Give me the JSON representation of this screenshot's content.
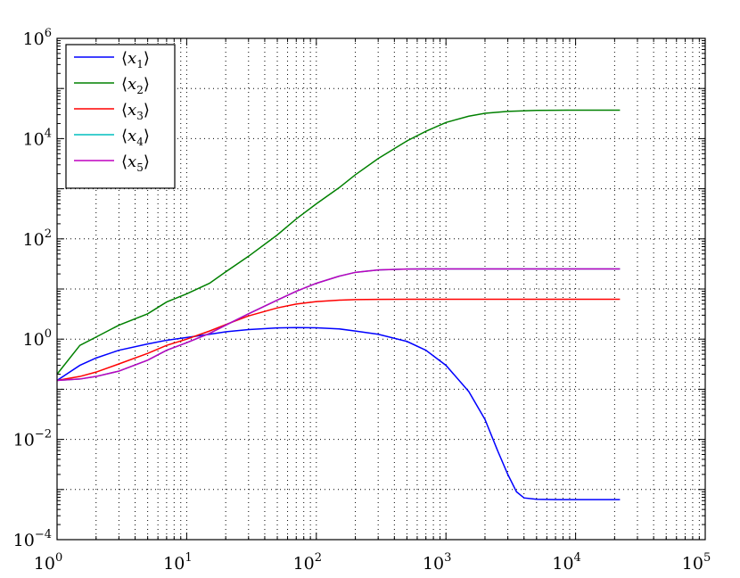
{
  "chart_data": {
    "type": "line",
    "xscale": "log",
    "yscale": "log",
    "xlim": [
      1,
      100000
    ],
    "ylim": [
      0.0001,
      1000000
    ],
    "grid": true,
    "legend": "top-left",
    "x_ticks": [
      {
        "base": "10",
        "exp": "0",
        "value": 1
      },
      {
        "base": "10",
        "exp": "1",
        "value": 10
      },
      {
        "base": "10",
        "exp": "2",
        "value": 100
      },
      {
        "base": "10",
        "exp": "3",
        "value": 1000
      },
      {
        "base": "10",
        "exp": "4",
        "value": 10000
      },
      {
        "base": "10",
        "exp": "5",
        "value": 100000
      }
    ],
    "y_ticks": [
      {
        "base": "10",
        "exp": "−4",
        "value": 0.0001
      },
      {
        "base": "10",
        "exp": "−2",
        "value": 0.01
      },
      {
        "base": "10",
        "exp": "0",
        "value": 1
      },
      {
        "base": "10",
        "exp": "2",
        "value": 100
      },
      {
        "base": "10",
        "exp": "4",
        "value": 10000
      },
      {
        "base": "10",
        "exp": "6",
        "value": 1000000
      }
    ],
    "series": [
      {
        "name": "⟨x1⟩",
        "label_main": "x",
        "label_sub": "1",
        "color": "#0000ff",
        "x": [
          1,
          1.5,
          2,
          3,
          5,
          7,
          10,
          15,
          20,
          30,
          50,
          70,
          100,
          150,
          200,
          300,
          500,
          700,
          1000,
          1500,
          2000,
          2500,
          3000,
          3500,
          4000,
          5000,
          7000,
          10000,
          15000,
          22000
        ],
        "y": [
          0.15,
          0.3,
          0.42,
          0.6,
          0.8,
          0.95,
          1.08,
          1.25,
          1.4,
          1.55,
          1.67,
          1.7,
          1.68,
          1.6,
          1.45,
          1.25,
          0.9,
          0.6,
          0.3,
          0.09,
          0.025,
          0.006,
          0.002,
          0.0009,
          0.00068,
          0.00064,
          0.00063,
          0.00063,
          0.00063,
          0.00063
        ]
      },
      {
        "name": "⟨x2⟩",
        "label_main": "x",
        "label_sub": "2",
        "color": "#008000",
        "x": [
          1,
          1.5,
          2,
          3,
          5,
          7,
          10,
          15,
          20,
          30,
          50,
          70,
          100,
          150,
          200,
          300,
          500,
          700,
          1000,
          1500,
          2000,
          3000,
          5000,
          7000,
          10000,
          15000,
          22000
        ],
        "y": [
          0.2,
          0.75,
          1.1,
          1.9,
          3.2,
          5.5,
          8,
          13,
          22,
          45,
          120,
          250,
          500,
          1050,
          1900,
          4000,
          9000,
          14000,
          21000,
          28000,
          32000,
          35000,
          36500,
          36800,
          37000,
          37000,
          37000
        ]
      },
      {
        "name": "⟨x3⟩",
        "label_main": "x",
        "label_sub": "3",
        "color": "#ff0000",
        "x": [
          1,
          1.5,
          2,
          3,
          5,
          7,
          10,
          15,
          20,
          30,
          50,
          70,
          100,
          150,
          200,
          300,
          500,
          1000,
          2000,
          5000,
          10000,
          22000
        ],
        "y": [
          0.15,
          0.18,
          0.22,
          0.32,
          0.52,
          0.75,
          1.0,
          1.45,
          1.95,
          2.9,
          4.2,
          5.0,
          5.6,
          6.0,
          6.15,
          6.22,
          6.25,
          6.25,
          6.25,
          6.25,
          6.25,
          6.25
        ]
      },
      {
        "name": "⟨x4⟩",
        "label_main": "x",
        "label_sub": "4",
        "color": "#00bfbf",
        "x": [
          1,
          1.5,
          2,
          3,
          5,
          7,
          10,
          15,
          20,
          30,
          50,
          70,
          100,
          150,
          200,
          300,
          500,
          700,
          1000,
          2000,
          5000,
          10000,
          22000
        ],
        "y": [
          0.15,
          0.16,
          0.18,
          0.23,
          0.38,
          0.6,
          0.85,
          1.3,
          1.9,
          3.2,
          6.0,
          9.0,
          13.0,
          18.0,
          21.5,
          24.0,
          25.0,
          25.2,
          25.2,
          25.2,
          25.2,
          25.2,
          25.2
        ]
      },
      {
        "name": "⟨x5⟩",
        "label_main": "x",
        "label_sub": "5",
        "color": "#bf00bf",
        "x": [
          1,
          1.5,
          2,
          3,
          5,
          7,
          10,
          15,
          20,
          30,
          50,
          70,
          100,
          150,
          200,
          300,
          500,
          700,
          1000,
          2000,
          5000,
          10000,
          22000
        ],
        "y": [
          0.15,
          0.16,
          0.18,
          0.23,
          0.38,
          0.6,
          0.85,
          1.3,
          1.9,
          3.2,
          6.0,
          9.0,
          13.0,
          18.0,
          21.5,
          24.0,
          25.0,
          25.2,
          25.2,
          25.2,
          25.2,
          25.2,
          25.2
        ]
      }
    ]
  }
}
